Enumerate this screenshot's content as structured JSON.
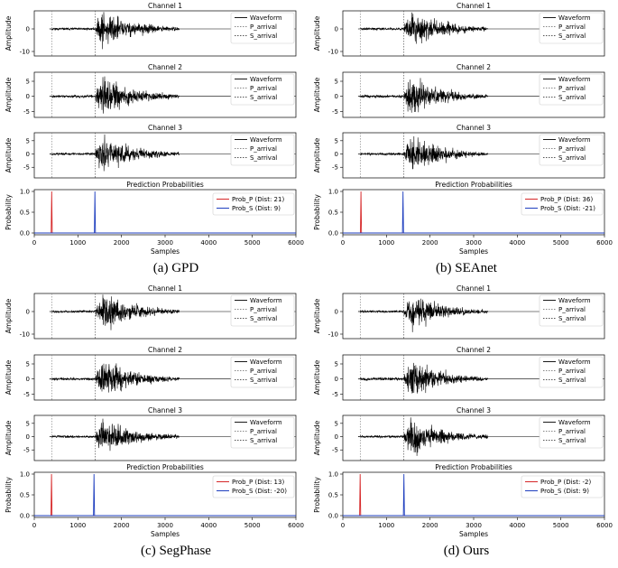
{
  "colors": {
    "waveform": "#000000",
    "p_arrival": "#888888",
    "s_arrival": "#555555",
    "prob_p": "#d62728",
    "prob_s": "#1f3fbf",
    "axis": "#000000",
    "legend_border": "#cccccc"
  },
  "chart_data": [
    {
      "type": "line",
      "caption": "(a) GPD",
      "title": "Prediction Probabilities",
      "xlabel": "Samples",
      "waveform_ylabel": "Amplitude",
      "prob_ylabel": "Probability",
      "xlim": [
        0,
        6000
      ],
      "x_ticks": [
        0,
        1000,
        2000,
        3000,
        4000,
        5000,
        6000
      ],
      "p_arrival_sample": 400,
      "s_arrival_sample": 1400,
      "channels": [
        {
          "title": "Channel 1",
          "ylim": [
            -12,
            8
          ],
          "yticks": [
            0,
            -10
          ],
          "legend": [
            "Waveform",
            "P_arrival",
            "S_arrival"
          ]
        },
        {
          "title": "Channel 2",
          "ylim": [
            -7,
            8
          ],
          "yticks": [
            5,
            0,
            -5
          ],
          "legend": [
            "Waveform",
            "P_arrival",
            "S_arrival"
          ]
        },
        {
          "title": "Channel 3",
          "ylim": [
            -9,
            8
          ],
          "yticks": [
            5,
            0,
            -5
          ],
          "legend": [
            "Waveform",
            "P_arrival",
            "S_arrival"
          ]
        }
      ],
      "probability": {
        "ylim": [
          0,
          1.0
        ],
        "yticks": [
          "1.0",
          "0.5",
          "0.0"
        ],
        "series": [
          {
            "name": "Prob_P (Dist: 21)",
            "peak_sample": 400,
            "peak": 1.0
          },
          {
            "name": "Prob_S (Dist: 9)",
            "peak_sample": 1390,
            "peak": 1.0
          }
        ]
      }
    },
    {
      "type": "line",
      "caption": "(b) SEAnet",
      "title": "Prediction Probabilities",
      "xlabel": "Samples",
      "waveform_ylabel": "Amplitude",
      "prob_ylabel": "Probability",
      "xlim": [
        0,
        6000
      ],
      "x_ticks": [
        0,
        1000,
        2000,
        3000,
        4000,
        5000,
        6000
      ],
      "p_arrival_sample": 400,
      "s_arrival_sample": 1400,
      "channels": [
        {
          "title": "Channel 1",
          "ylim": [
            -12,
            8
          ],
          "yticks": [
            0,
            -10
          ],
          "legend": [
            "Waveform",
            "P_arrival",
            "S_arrival"
          ]
        },
        {
          "title": "Channel 2",
          "ylim": [
            -7,
            8
          ],
          "yticks": [
            5,
            0,
            -5
          ],
          "legend": [
            "Waveform",
            "P_arrival",
            "S_arrival"
          ]
        },
        {
          "title": "Channel 3",
          "ylim": [
            -9,
            8
          ],
          "yticks": [
            5,
            0,
            -5
          ],
          "legend": [
            "Waveform",
            "P_arrival",
            "S_arrival"
          ]
        }
      ],
      "probability": {
        "ylim": [
          0,
          1.0
        ],
        "yticks": [
          "1.0",
          "0.5",
          "0.0"
        ],
        "series": [
          {
            "name": "Prob_P (Dist: 36)",
            "peak_sample": 415,
            "peak": 1.0
          },
          {
            "name": "Prob_S (Dist: -21)",
            "peak_sample": 1380,
            "peak": 1.0
          }
        ]
      }
    },
    {
      "type": "line",
      "caption": "(c) SegPhase",
      "title": "Prediction Probabilities",
      "xlabel": "Samples",
      "waveform_ylabel": "Amplitude",
      "prob_ylabel": "Probability",
      "xlim": [
        0,
        6000
      ],
      "x_ticks": [
        0,
        1000,
        2000,
        3000,
        4000,
        5000,
        6000
      ],
      "p_arrival_sample": 400,
      "s_arrival_sample": 1400,
      "channels": [
        {
          "title": "Channel 1",
          "ylim": [
            -12,
            8
          ],
          "yticks": [
            0,
            -10
          ],
          "legend": [
            "Waveform",
            "P_arrival",
            "S_arrival"
          ]
        },
        {
          "title": "Channel 2",
          "ylim": [
            -7,
            8
          ],
          "yticks": [
            5,
            0,
            -5
          ],
          "legend": [
            "Waveform",
            "P_arrival",
            "S_arrival"
          ]
        },
        {
          "title": "Channel 3",
          "ylim": [
            -9,
            8
          ],
          "yticks": [
            5,
            0,
            -5
          ],
          "legend": [
            "Waveform",
            "P_arrival",
            "S_arrival"
          ]
        }
      ],
      "probability": {
        "ylim": [
          0,
          1.0
        ],
        "yticks": [
          "1.0",
          "0.5",
          "0.0"
        ],
        "series": [
          {
            "name": "Prob_P (Dist: 13)",
            "peak_sample": 395,
            "peak": 1.0
          },
          {
            "name": "Prob_S (Dist: -20)",
            "peak_sample": 1370,
            "peak": 1.0
          }
        ]
      }
    },
    {
      "type": "line",
      "caption": "(d) Ours",
      "title": "Prediction Probabilities",
      "xlabel": "Samples",
      "waveform_ylabel": "Amplitude",
      "prob_ylabel": "Probability",
      "xlim": [
        0,
        6000
      ],
      "x_ticks": [
        0,
        1000,
        2000,
        3000,
        4000,
        5000,
        6000
      ],
      "p_arrival_sample": 400,
      "s_arrival_sample": 1400,
      "channels": [
        {
          "title": "Channel 1",
          "ylim": [
            -12,
            8
          ],
          "yticks": [
            0,
            -10
          ],
          "legend": [
            "Waveform",
            "P_arrival",
            "S_arrival"
          ]
        },
        {
          "title": "Channel 2",
          "ylim": [
            -7,
            8
          ],
          "yticks": [
            5,
            0,
            -5
          ],
          "legend": [
            "Waveform",
            "P_arrival",
            "S_arrival"
          ]
        },
        {
          "title": "Channel 3",
          "ylim": [
            -9,
            8
          ],
          "yticks": [
            5,
            0,
            -5
          ],
          "legend": [
            "Waveform",
            "P_arrival",
            "S_arrival"
          ]
        }
      ],
      "probability": {
        "ylim": [
          0,
          1.0
        ],
        "yticks": [
          "1.0",
          "0.5",
          "0.0"
        ],
        "series": [
          {
            "name": "Prob_P (Dist: -2)",
            "peak_sample": 398,
            "peak": 1.0
          },
          {
            "name": "Prob_S (Dist: 9)",
            "peak_sample": 1400,
            "peak": 1.0
          }
        ]
      }
    }
  ]
}
